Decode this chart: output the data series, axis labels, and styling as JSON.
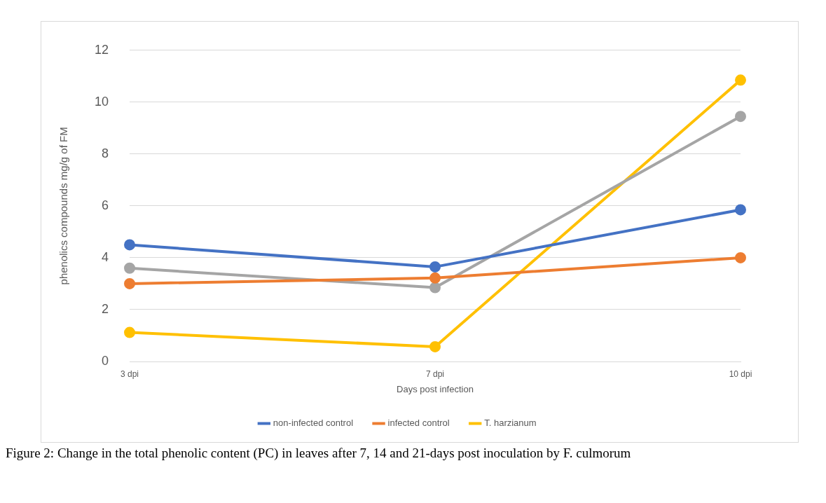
{
  "chart_data": {
    "type": "line",
    "xlabel": "Days post infection",
    "ylabel": "phenolics compounds mg/g of FM",
    "categories": [
      "3 dpi",
      "7 dpi",
      "10 dpi"
    ],
    "series": [
      {
        "name": "non-infected control",
        "color": "#4472c4",
        "values": [
          4.5,
          3.65,
          5.85
        ]
      },
      {
        "name": "infected control",
        "color": "#ed7d31",
        "values": [
          3.0,
          3.22,
          4.0
        ]
      },
      {
        "color": "#a5a5a5",
        "values": [
          3.6,
          2.85,
          9.45
        ]
      },
      {
        "name": "T. harzianum",
        "color": "#ffc000",
        "values": [
          1.12,
          0.57,
          10.85
        ]
      }
    ],
    "ylim": [
      0,
      12
    ],
    "yticks": [
      0,
      2,
      4,
      6,
      8,
      10,
      12
    ],
    "grid": "y",
    "legend": "bottom",
    "marker": "circle",
    "line_style": "solid",
    "annotations": [
      "Figure 2: Change in the total phenolic content (PC) in leaves after 7, 14 and 21-days post inoculation by F. culmorum"
    ]
  }
}
